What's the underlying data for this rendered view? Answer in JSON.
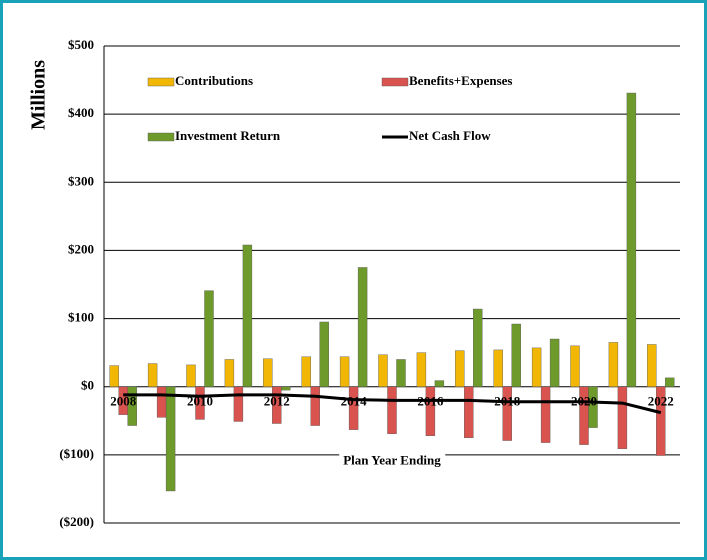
{
  "chart_data": {
    "type": "bar",
    "y_label": "Millions",
    "x_label": "Plan Year Ending",
    "categories": [
      "2008",
      null,
      "2010",
      null,
      "2012",
      null,
      "2014",
      null,
      "2016",
      null,
      "2018",
      null,
      "2020",
      null,
      "2022"
    ],
    "series": [
      {
        "name": "Contributions",
        "color": "#f2b705",
        "values": [
          31,
          34,
          32,
          40,
          41,
          44,
          44,
          47,
          50,
          53,
          54,
          57,
          60,
          65,
          62
        ]
      },
      {
        "name": "Benefits+Expenses",
        "color": "#d9534f",
        "values": [
          -41,
          -45,
          -48,
          -51,
          -54,
          -57,
          -63,
          -69,
          -72,
          -75,
          -79,
          -82,
          -85,
          -91,
          -101
        ]
      },
      {
        "name": "Investment Return",
        "color": "#6e9a2c",
        "values": [
          -57,
          -153,
          141,
          208,
          -5,
          95,
          175,
          40,
          9,
          114,
          92,
          70,
          -60,
          431,
          13
        ]
      },
      {
        "name": "Net Cash Flow",
        "type": "line",
        "color": "#000000",
        "values": [
          -12,
          -12,
          -14,
          -12,
          -12,
          -14,
          -19,
          -20,
          -20,
          -20,
          -22,
          -22,
          -22,
          -24,
          -38
        ]
      }
    ],
    "ylim": [
      -200,
      500
    ],
    "yticks": [
      {
        "value": -200,
        "label": "($200)"
      },
      {
        "value": -100,
        "label": "($100)"
      },
      {
        "value": 0,
        "label": "$0"
      },
      {
        "value": 100,
        "label": "$100"
      },
      {
        "value": 200,
        "label": "$200"
      },
      {
        "value": 300,
        "label": "$300"
      },
      {
        "value": 400,
        "label": "$400"
      },
      {
        "value": 500,
        "label": "$500"
      }
    ],
    "grid": true,
    "legend": "top"
  }
}
